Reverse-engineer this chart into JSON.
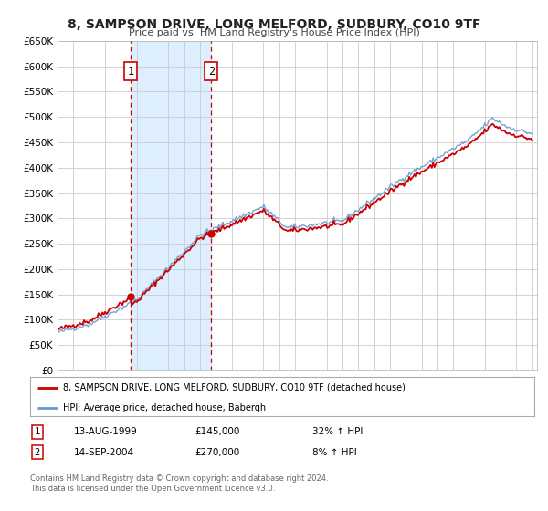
{
  "title": "8, SAMPSON DRIVE, LONG MELFORD, SUDBURY, CO10 9TF",
  "subtitle": "Price paid vs. HM Land Registry's House Price Index (HPI)",
  "ylim": [
    0,
    650000
  ],
  "yticks": [
    0,
    50000,
    100000,
    150000,
    200000,
    250000,
    300000,
    350000,
    400000,
    450000,
    500000,
    550000,
    600000,
    650000
  ],
  "ytick_labels": [
    "£0",
    "£50K",
    "£100K",
    "£150K",
    "£200K",
    "£250K",
    "£300K",
    "£350K",
    "£400K",
    "£450K",
    "£500K",
    "£550K",
    "£600K",
    "£650K"
  ],
  "hpi_color": "#6699cc",
  "price_color": "#cc0000",
  "sale1_date_num": 1999.617,
  "sale1_price": 145000,
  "sale2_date_num": 2004.708,
  "sale2_price": 270000,
  "legend_line1": "8, SAMPSON DRIVE, LONG MELFORD, SUDBURY, CO10 9TF (detached house)",
  "legend_line2": "HPI: Average price, detached house, Babergh",
  "table_row1": [
    "1",
    "13-AUG-1999",
    "£145,000",
    "32% ↑ HPI"
  ],
  "table_row2": [
    "2",
    "14-SEP-2004",
    "£270,000",
    "8% ↑ HPI"
  ],
  "footnote1": "Contains HM Land Registry data © Crown copyright and database right 2024.",
  "footnote2": "This data is licensed under the Open Government Licence v3.0.",
  "background_color": "#ffffff",
  "grid_color": "#cccccc",
  "shade_color": "#ddeeff"
}
